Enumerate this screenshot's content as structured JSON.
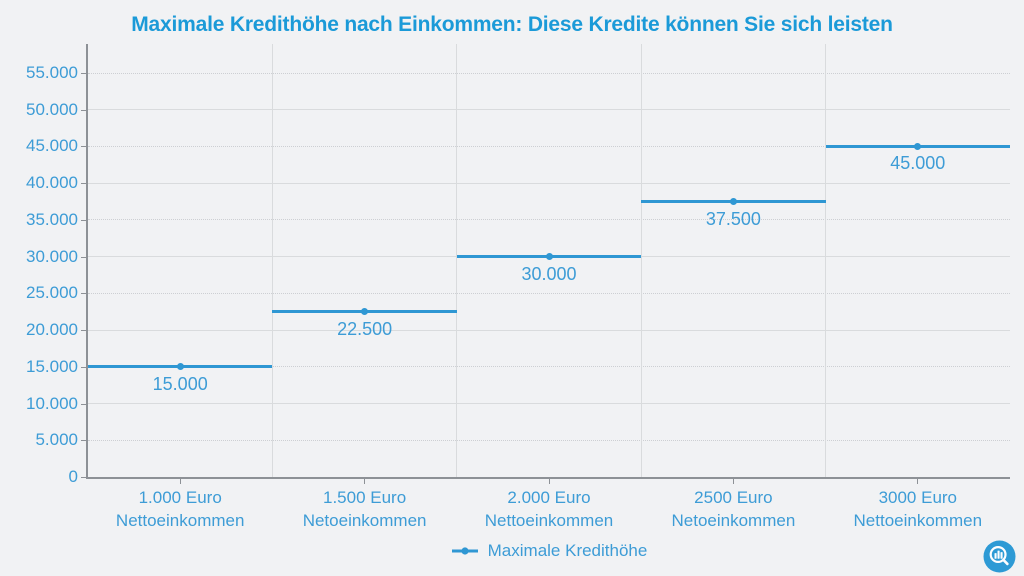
{
  "title": "Maximale Kredithöhe nach Einkommen: Diese Kredite können Sie sich leisten",
  "colors": {
    "accent_blue": "#2f97d3",
    "label_blue": "#3d9cd6",
    "title_blue": "#1b9ad8",
    "background": "#f1f2f4",
    "grid_solid": "#d9dbdd",
    "grid_dotted": "#cdcfd3",
    "axis_line": "#8d9196",
    "logo_blue": "#2d9ad5"
  },
  "logo": "chart-magnifier-watermark",
  "chart_data": {
    "type": "line",
    "subtype": "horizontal-step-segments-with-center-markers",
    "title": "Maximale Kredithöhe nach Einkommen: Diese Kredite können Sie sich leisten",
    "categories": [
      "1.000 Euro\nNettoeinkommen",
      "1.500 Euro\nNetoeinkommen",
      "2.000 Euro\nNettoeinkommen",
      "2500 Euro\nNetoeinkommen",
      "3000 Euro\nNettoeinkommen"
    ],
    "series": [
      {
        "name": "Maximale Kredithöhe",
        "values": [
          15000,
          22500,
          30000,
          37500,
          45000
        ],
        "data_labels": [
          "15.000",
          "22.500",
          "30.000",
          "37.500",
          "45.000"
        ]
      }
    ],
    "xlabel": "",
    "ylabel": "",
    "ylim": [
      0,
      55000
    ],
    "y_ticks": [
      {
        "value": 0,
        "label": "0"
      },
      {
        "value": 5000,
        "label": "5.000"
      },
      {
        "value": 10000,
        "label": "10.000"
      },
      {
        "value": 15000,
        "label": "15.000"
      },
      {
        "value": 20000,
        "label": "20.000"
      },
      {
        "value": 25000,
        "label": "25.000"
      },
      {
        "value": 30000,
        "label": "30.000"
      },
      {
        "value": 35000,
        "label": "35.000"
      },
      {
        "value": 40000,
        "label": "40.000"
      },
      {
        "value": 45000,
        "label": "45.000"
      },
      {
        "value": 50000,
        "label": "50.000"
      },
      {
        "value": 55000,
        "label": "55.000"
      }
    ],
    "grid": true,
    "legend_position": "bottom-center",
    "marker": "circle"
  }
}
